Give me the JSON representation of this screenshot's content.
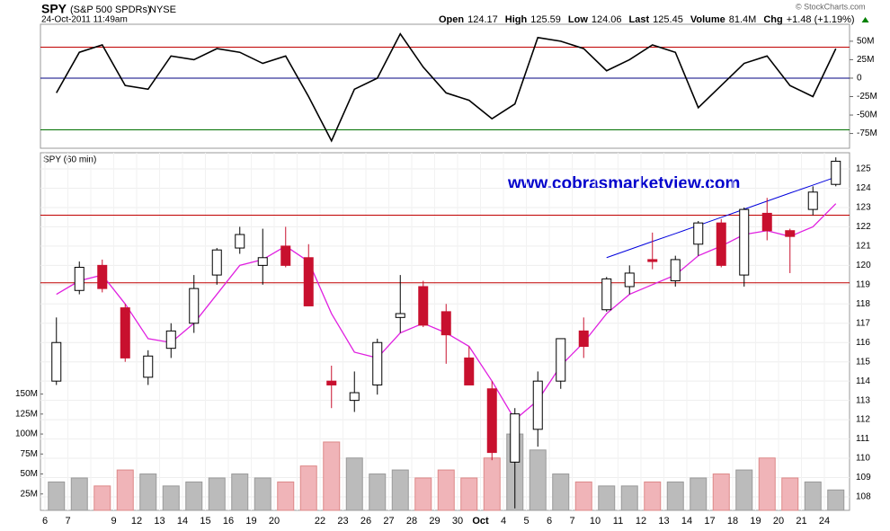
{
  "header": {
    "symbol": "SPY",
    "name": "(S&P 500 SPDRs)",
    "exchange": "NYSE",
    "date": "24-Oct-2011 11:49am",
    "quote": [
      [
        "Open",
        "124.17"
      ],
      [
        "High",
        "125.59"
      ],
      [
        "Low",
        "124.06"
      ],
      [
        "Last",
        "125.45"
      ],
      [
        "Volume",
        "81.4M"
      ],
      [
        "Chg",
        "+1.48 (+1.19%)"
      ]
    ],
    "credit": "© StockCharts.com",
    "watermark": "www.cobrasmarketview.com"
  },
  "chart_data": [
    {
      "type": "line",
      "color": "#000",
      "values": [
        -20,
        35,
        45,
        -10,
        -15,
        30,
        25,
        40,
        35,
        20,
        30,
        -25,
        -85,
        -15,
        0,
        60,
        15,
        -20,
        -30,
        -55,
        -35,
        55,
        50,
        40,
        10,
        25,
        45,
        35,
        -40,
        -10,
        20,
        30,
        -10,
        -25,
        40
      ],
      "ylim": [
        -95,
        73
      ],
      "yticks": [
        {
          "value": 50,
          "label": "50M"
        },
        {
          "value": 25,
          "label": "25M"
        },
        0,
        {
          "value": -25,
          "label": "-25M"
        },
        {
          "value": -50,
          "label": "-50M"
        },
        {
          "value": -75,
          "label": "-75M"
        }
      ],
      "levels": [
        42,
        -70
      ],
      "level_colors": [
        "#c00000",
        "#007000"
      ]
    },
    {
      "type": "candlestick",
      "label": "SPY (60 min)",
      "x": [
        "6",
        "7",
        null,
        "9",
        "12",
        "13",
        "14",
        "15",
        "16",
        "19",
        "20",
        null,
        "22",
        "23",
        "26",
        "27",
        "28",
        "29",
        "30",
        "Oct",
        "4",
        "5",
        "6",
        "7",
        "10",
        "11",
        "12",
        "13",
        "14",
        "17",
        "18",
        "19",
        "20",
        "21",
        "24"
      ],
      "open": [
        114,
        118.7,
        120,
        117.8,
        114.2,
        115.7,
        117,
        119.5,
        120.9,
        120,
        121,
        120.4,
        114,
        113,
        113.8,
        117.3,
        118.9,
        117.6,
        115.2,
        113.6,
        109.8,
        111.5,
        114,
        116.6,
        117.7,
        118.9,
        120.3,
        119.2,
        121.1,
        122.2,
        119.5,
        122.7,
        121.8,
        122.9,
        124.2
      ],
      "high": [
        117.3,
        120.2,
        120.3,
        118,
        115.6,
        117,
        119.5,
        120.9,
        122,
        121.9,
        122,
        121.1,
        114.8,
        114.5,
        116.2,
        119.5,
        119.2,
        118,
        115.8,
        114,
        112.6,
        114.5,
        116.2,
        117.3,
        119.4,
        120,
        121.7,
        120.5,
        122.3,
        122.4,
        123,
        123.5,
        121.9,
        124.1,
        125.6
      ],
      "low": [
        113.8,
        118.5,
        118.6,
        115,
        113.8,
        115.2,
        116.5,
        119,
        120.6,
        119,
        119.9,
        117.9,
        112.6,
        112.4,
        113.3,
        116.5,
        116.8,
        114.9,
        113.8,
        109.9,
        107.4,
        110.6,
        113.6,
        115.2,
        117.6,
        118.5,
        119.8,
        118.9,
        120.5,
        119.9,
        118.9,
        121.3,
        119.6,
        122.6,
        124.1
      ],
      "close": [
        116,
        119.9,
        118.8,
        115.2,
        115.3,
        116.6,
        118.8,
        120.8,
        121.6,
        120.4,
        120,
        117.9,
        113.8,
        113.4,
        116,
        117.5,
        116.9,
        116.4,
        113.8,
        110.3,
        112.3,
        114,
        116.2,
        115.8,
        119.3,
        119.6,
        120.2,
        120.3,
        122.2,
        120,
        122.9,
        121.8,
        121.5,
        123.8,
        125.4
      ],
      "ma": [
        118.5,
        119.2,
        119.5,
        118,
        116.2,
        116,
        117,
        118.5,
        120,
        120.3,
        121,
        120.2,
        117.5,
        115.5,
        115.2,
        116.5,
        117,
        116.5,
        115.8,
        114,
        112,
        113,
        114.8,
        116,
        117.5,
        118.5,
        119,
        119.5,
        120.5,
        121,
        121.6,
        121.8,
        121.5,
        122,
        123.2
      ],
      "volume": [
        40,
        45,
        35,
        55,
        50,
        35,
        40,
        45,
        50,
        45,
        40,
        60,
        90,
        70,
        50,
        55,
        45,
        55,
        45,
        70,
        100,
        80,
        50,
        40,
        35,
        35,
        40,
        40,
        45,
        50,
        55,
        70,
        45,
        40,
        30
      ],
      "trendline": [
        null,
        null,
        null,
        null,
        null,
        null,
        null,
        null,
        null,
        null,
        null,
        null,
        null,
        null,
        null,
        null,
        null,
        null,
        null,
        null,
        null,
        null,
        null,
        null,
        120.4,
        120.82,
        121.24,
        121.65,
        122.07,
        122.49,
        122.91,
        123.33,
        123.75,
        124.16,
        124.58
      ],
      "up_color": "#000",
      "down_color": "#c8102e",
      "ma_color": "#e020e0",
      "trend_color": "#0000dd",
      "ylim": [
        107.3,
        125.84
      ],
      "yticks": [
        108,
        109,
        110,
        111,
        112,
        113,
        114,
        115,
        116,
        117,
        118,
        119,
        120,
        121,
        122,
        123,
        124,
        125
      ],
      "levels": [
        122.6,
        119.1
      ],
      "level_colors": [
        "#c00000",
        "#c00000"
      ],
      "y2lim": [
        4.5,
        452
      ],
      "y2ticks": [
        {
          "value": 25,
          "label": "25M"
        },
        {
          "value": 50,
          "label": "50M"
        },
        {
          "value": 75,
          "label": "75M"
        },
        {
          "value": 100,
          "label": "100M"
        },
        {
          "value": 125,
          "label": "125M"
        },
        {
          "value": 150,
          "label": "150M"
        }
      ],
      "grid": true
    }
  ]
}
